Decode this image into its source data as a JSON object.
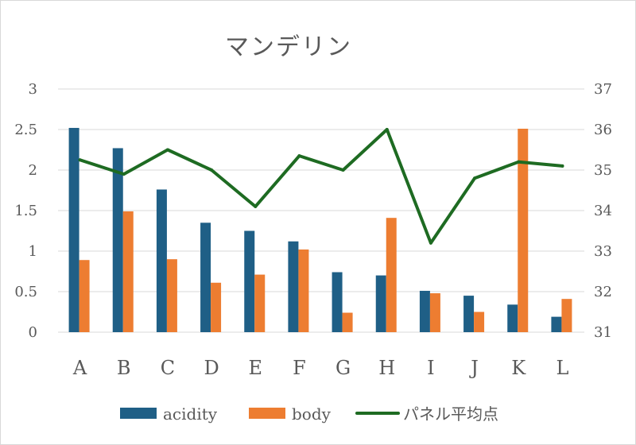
{
  "chart_data": {
    "type": "bar",
    "title": "マンデリン",
    "categories": [
      "A",
      "B",
      "C",
      "D",
      "E",
      "F",
      "G",
      "H",
      "I",
      "J",
      "K",
      "L"
    ],
    "ylim": [
      0,
      3
    ],
    "yticks": [
      "0",
      "0.5",
      "1",
      "1.5",
      "2",
      "2.5",
      "3"
    ],
    "y2lim": [
      31,
      37
    ],
    "y2ticks": [
      "31",
      "32",
      "33",
      "34",
      "35",
      "36",
      "37"
    ],
    "grid": true,
    "legend": "bottom",
    "series": [
      {
        "name": "acidity",
        "type": "bar",
        "axis": "left",
        "color": "#1f5f86",
        "values": [
          2.52,
          2.27,
          1.76,
          1.35,
          1.25,
          1.12,
          0.74,
          0.7,
          0.51,
          0.45,
          0.34,
          0.19
        ]
      },
      {
        "name": "body",
        "type": "bar",
        "axis": "left",
        "color": "#ed7d31",
        "values": [
          0.89,
          1.49,
          0.9,
          0.61,
          0.71,
          1.02,
          0.24,
          1.41,
          0.48,
          0.25,
          2.51,
          0.41
        ]
      },
      {
        "name": "パネル平均点",
        "type": "line",
        "axis": "right",
        "color": "#1e6b22",
        "values": [
          35.25,
          34.9,
          35.5,
          35.0,
          34.1,
          35.35,
          35.0,
          36.0,
          33.2,
          34.8,
          35.2,
          35.1
        ]
      }
    ]
  }
}
